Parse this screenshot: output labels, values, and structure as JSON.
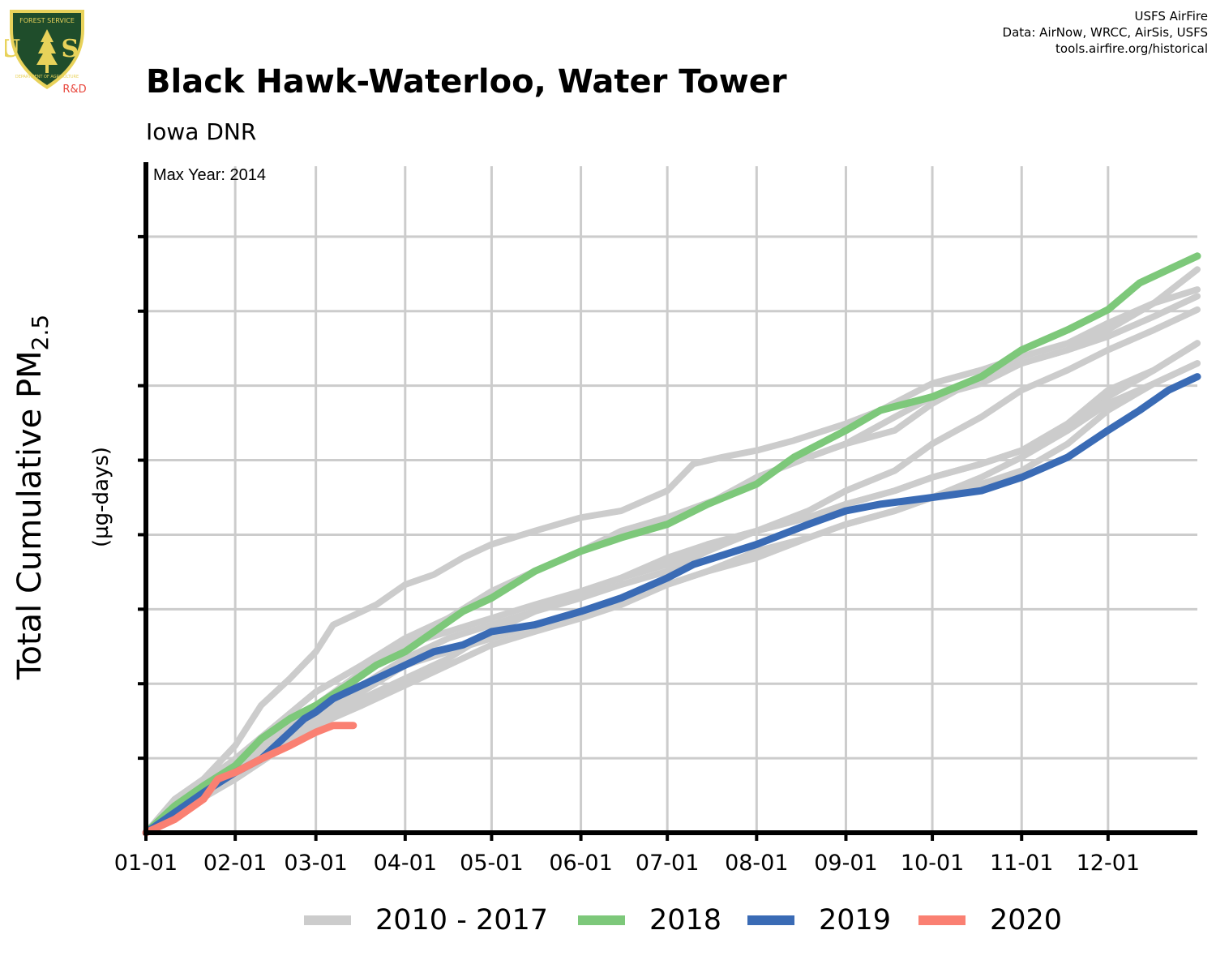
{
  "header": {
    "title": "Black Hawk-Waterloo, Water Tower",
    "subtitle": "Iowa DNR",
    "credits": [
      "USFS AirFire",
      "Data: AirNow, WRCC, AirSis, USFS",
      "tools.airfire.org/historical"
    ]
  },
  "logo": {
    "top_text": "FOREST SERVICE",
    "letters": "U S",
    "bottom_text": "DEPARTMENT OF AGRICULTURE",
    "badge": "R&D",
    "colors": {
      "shield": "#1f4d2b",
      "trim": "#e8d25a",
      "badge": "#e8463c"
    }
  },
  "chart_data": {
    "type": "line",
    "title": "Black Hawk-Waterloo, Water Tower",
    "subtitle": "Iowa DNR",
    "ylabel_main": "Total Cumulative PM",
    "ylabel_sub": "2.5",
    "ylabel_unit": "(µg-days)",
    "annotation": "Max Year: 2014",
    "x_ticks": [
      "01-01",
      "02-01",
      "03-01",
      "04-01",
      "05-01",
      "06-01",
      "07-01",
      "08-01",
      "09-01",
      "10-01",
      "11-01",
      "12-01"
    ],
    "x_tick_days": [
      0,
      31,
      59,
      90,
      120,
      151,
      181,
      212,
      243,
      273,
      304,
      334
    ],
    "xlim": [
      0,
      365
    ],
    "ylim": [
      0,
      1
    ],
    "y_tick_count": 9,
    "y_tick_labels_shown": false,
    "grid": true,
    "legend_position": "bottom",
    "colors": {
      "history": "#cccccc",
      "2018": "#7dc87a",
      "2019": "#3a6bb5",
      "2020": "#fa8072"
    },
    "legend": [
      {
        "label": "2010 - 2017",
        "color": "#cccccc"
      },
      {
        "label": "2018",
        "color": "#7dc87a"
      },
      {
        "label": "2019",
        "color": "#3a6bb5"
      },
      {
        "label": "2020",
        "color": "#fa8072"
      }
    ],
    "history_series": [
      {
        "x": [
          0,
          10,
          20,
          31,
          40,
          50,
          59,
          65,
          70,
          80,
          90,
          100,
          110,
          120,
          135,
          151,
          165,
          181,
          190,
          200,
          212,
          225,
          243,
          255,
          273,
          290,
          304,
          320,
          334,
          350,
          365
        ],
        "y": [
          0,
          0.05,
          0.08,
          0.13,
          0.19,
          0.23,
          0.27,
          0.31,
          0.32,
          0.34,
          0.37,
          0.385,
          0.41,
          0.43,
          0.45,
          0.47,
          0.48,
          0.51,
          0.55,
          0.56,
          0.57,
          0.585,
          0.61,
          0.63,
          0.67,
          0.69,
          0.71,
          0.73,
          0.76,
          0.79,
          0.81
        ]
      },
      {
        "x": [
          0,
          15,
          31,
          45,
          59,
          75,
          90,
          105,
          120,
          135,
          151,
          165,
          181,
          200,
          212,
          230,
          243,
          260,
          273,
          290,
          304,
          320,
          334,
          350,
          365
        ],
        "y": [
          0,
          0.06,
          0.11,
          0.16,
          0.21,
          0.25,
          0.29,
          0.32,
          0.36,
          0.39,
          0.42,
          0.45,
          0.47,
          0.5,
          0.53,
          0.56,
          0.58,
          0.62,
          0.65,
          0.67,
          0.7,
          0.72,
          0.74,
          0.77,
          0.8
        ]
      },
      {
        "x": [
          0,
          15,
          31,
          45,
          59,
          75,
          90,
          105,
          120,
          135,
          151,
          165,
          181,
          195,
          212,
          230,
          243,
          260,
          273,
          290,
          304,
          320,
          334,
          350,
          365
        ],
        "y": [
          0,
          0.05,
          0.1,
          0.15,
          0.19,
          0.24,
          0.28,
          0.32,
          0.36,
          0.39,
          0.42,
          0.44,
          0.46,
          0.49,
          0.53,
          0.56,
          0.58,
          0.6,
          0.64,
          0.68,
          0.7,
          0.72,
          0.75,
          0.79,
          0.84
        ]
      },
      {
        "x": [
          0,
          15,
          31,
          45,
          59,
          75,
          90,
          105,
          120,
          135,
          151,
          165,
          181,
          195,
          212,
          230,
          243,
          260,
          273,
          290,
          304,
          320,
          334,
          350,
          365
        ],
        "y": [
          0,
          0.05,
          0.1,
          0.14,
          0.18,
          0.22,
          0.26,
          0.29,
          0.31,
          0.33,
          0.35,
          0.37,
          0.39,
          0.42,
          0.45,
          0.48,
          0.51,
          0.54,
          0.58,
          0.62,
          0.66,
          0.69,
          0.72,
          0.75,
          0.78
        ]
      },
      {
        "x": [
          0,
          15,
          31,
          45,
          59,
          75,
          90,
          105,
          120,
          135,
          151,
          165,
          181,
          195,
          212,
          230,
          243,
          260,
          273,
          290,
          304,
          320,
          334,
          350,
          365
        ],
        "y": [
          0,
          0.04,
          0.08,
          0.12,
          0.16,
          0.19,
          0.22,
          0.25,
          0.28,
          0.3,
          0.32,
          0.34,
          0.37,
          0.39,
          0.41,
          0.44,
          0.46,
          0.48,
          0.5,
          0.53,
          0.56,
          0.6,
          0.65,
          0.69,
          0.73
        ]
      },
      {
        "x": [
          0,
          15,
          31,
          45,
          59,
          75,
          90,
          105,
          120,
          135,
          151,
          165,
          181,
          195,
          212,
          230,
          243,
          260,
          273,
          290,
          304,
          320,
          334,
          350,
          365
        ],
        "y": [
          0,
          0.05,
          0.09,
          0.13,
          0.17,
          0.21,
          0.25,
          0.27,
          0.29,
          0.31,
          0.33,
          0.35,
          0.37,
          0.39,
          0.42,
          0.44,
          0.46,
          0.48,
          0.5,
          0.52,
          0.54,
          0.58,
          0.63,
          0.67,
          0.7
        ]
      },
      {
        "x": [
          0,
          15,
          31,
          45,
          59,
          75,
          90,
          105,
          120,
          135,
          151,
          165,
          181,
          195,
          212,
          230,
          243,
          260,
          273,
          290,
          304,
          320,
          334,
          350,
          365
        ],
        "y": [
          0,
          0.06,
          0.11,
          0.16,
          0.21,
          0.25,
          0.28,
          0.3,
          0.32,
          0.34,
          0.36,
          0.38,
          0.41,
          0.43,
          0.45,
          0.47,
          0.49,
          0.51,
          0.53,
          0.55,
          0.57,
          0.6,
          0.64,
          0.67,
          0.7
        ]
      },
      {
        "x": [
          0,
          15,
          31,
          45,
          59,
          75,
          90,
          105,
          120,
          135,
          151,
          165,
          181,
          195,
          212,
          230,
          243,
          260,
          273,
          290,
          304,
          320,
          334,
          350,
          365
        ],
        "y": [
          0,
          0.04,
          0.08,
          0.12,
          0.16,
          0.2,
          0.23,
          0.26,
          0.3,
          0.33,
          0.36,
          0.38,
          0.4,
          0.43,
          0.45,
          0.47,
          0.49,
          0.51,
          0.53,
          0.55,
          0.57,
          0.61,
          0.66,
          0.69,
          0.73
        ]
      }
    ],
    "series": [
      {
        "name": "2018",
        "x": [
          0,
          10,
          20,
          31,
          40,
          50,
          59,
          70,
          80,
          90,
          100,
          110,
          120,
          135,
          151,
          165,
          181,
          195,
          212,
          225,
          243,
          255,
          273,
          290,
          304,
          320,
          334,
          345,
          355,
          365
        ],
        "y": [
          0,
          0.04,
          0.07,
          0.1,
          0.14,
          0.17,
          0.19,
          0.22,
          0.25,
          0.27,
          0.3,
          0.33,
          0.35,
          0.39,
          0.42,
          0.44,
          0.46,
          0.49,
          0.52,
          0.56,
          0.6,
          0.63,
          0.65,
          0.68,
          0.72,
          0.75,
          0.78,
          0.82,
          0.84,
          0.86
        ]
      },
      {
        "name": "2019",
        "x": [
          0,
          10,
          20,
          31,
          40,
          50,
          55,
          59,
          65,
          70,
          80,
          90,
          100,
          110,
          120,
          135,
          151,
          165,
          181,
          190,
          212,
          230,
          243,
          255,
          273,
          290,
          304,
          320,
          334,
          345,
          355,
          365
        ],
        "y": [
          0,
          0.03,
          0.06,
          0.09,
          0.11,
          0.15,
          0.17,
          0.18,
          0.2,
          0.21,
          0.23,
          0.25,
          0.27,
          0.28,
          0.3,
          0.31,
          0.33,
          0.35,
          0.38,
          0.4,
          0.43,
          0.46,
          0.48,
          0.49,
          0.5,
          0.51,
          0.53,
          0.56,
          0.6,
          0.63,
          0.66,
          0.68
        ]
      },
      {
        "name": "2020",
        "x": [
          0,
          10,
          20,
          25,
          31,
          40,
          50,
          59,
          65,
          72
        ],
        "y": [
          0,
          0.02,
          0.05,
          0.08,
          0.09,
          0.11,
          0.13,
          0.15,
          0.16,
          0.16
        ]
      }
    ]
  }
}
